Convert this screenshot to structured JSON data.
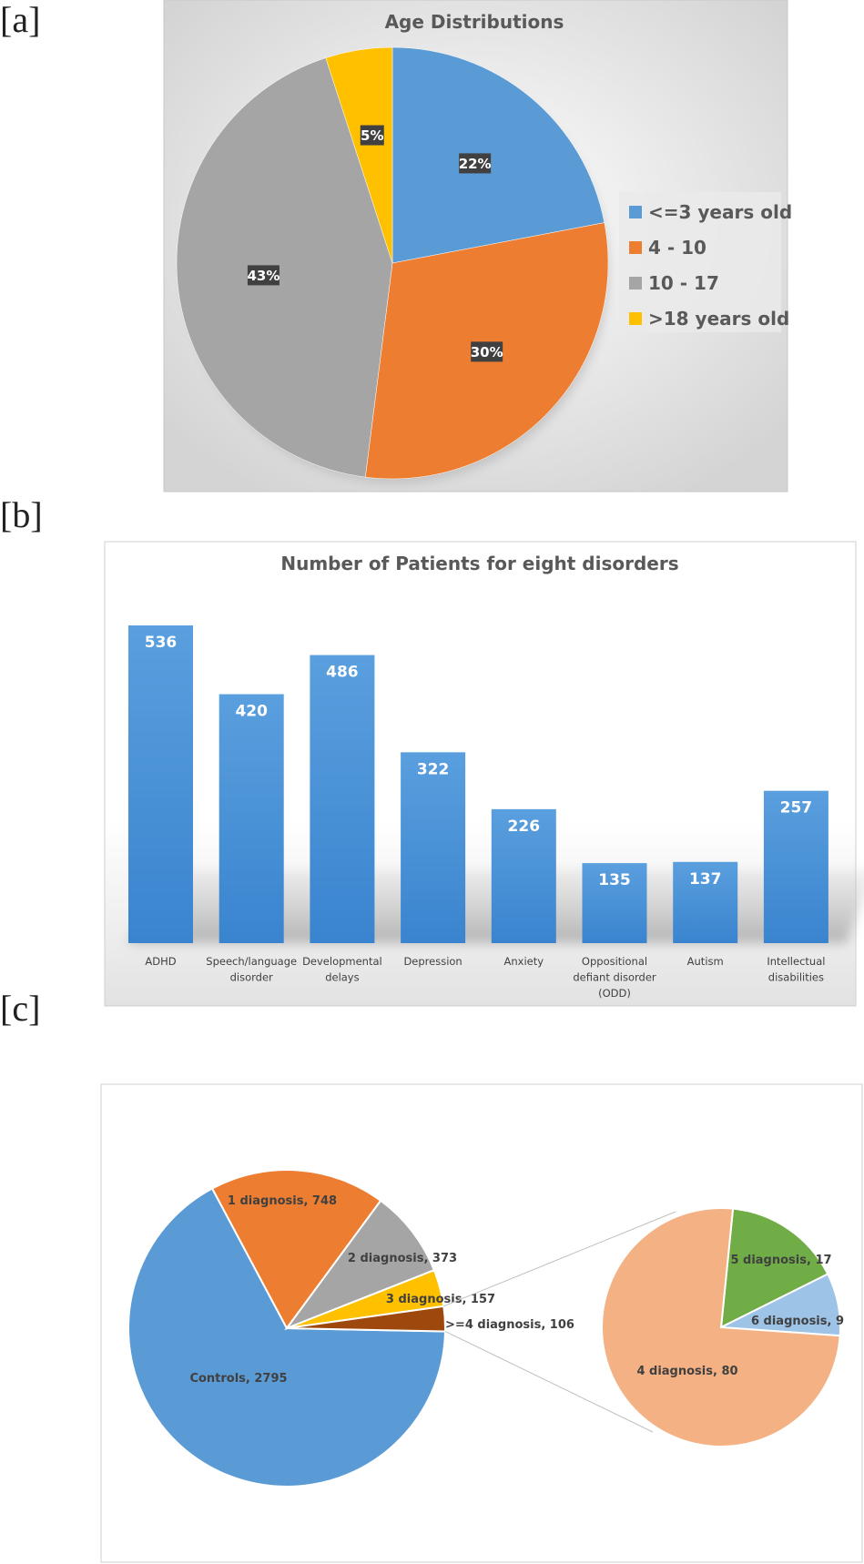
{
  "panels": {
    "a": "[a]",
    "b": "[b]",
    "c": "[c]"
  },
  "chart_data": [
    {
      "type": "pie",
      "title": "Age Distributions",
      "categories": [
        "<=3 years old",
        "4 - 10",
        "10 - 17",
        ">18 years old"
      ],
      "values": [
        22,
        30,
        43,
        5
      ],
      "labels": [
        "22%",
        "30%",
        "43%",
        "5%"
      ],
      "colors": [
        "#5b9bd5",
        "#ed7d31",
        "#a5a5a5",
        "#ffc000"
      ],
      "legend": "right"
    },
    {
      "type": "bar",
      "title": "Number of Patients for eight disorders",
      "categories": [
        [
          "ADHD"
        ],
        [
          "Speech/language",
          "disorder"
        ],
        [
          "Developmental",
          "delays"
        ],
        [
          "Depression"
        ],
        [
          "Anxiety"
        ],
        [
          "Oppositional",
          "defiant disorder",
          "(ODD)"
        ],
        [
          "Autism"
        ],
        [
          "Intellectual",
          "disabilities"
        ]
      ],
      "values": [
        536,
        420,
        486,
        322,
        226,
        135,
        137,
        257
      ],
      "color": "#4a8fd6",
      "grid": false
    },
    {
      "type": "pie",
      "categories": [
        "Controls",
        "1 diagnosis",
        "2 diagnosis",
        "3 diagnosis",
        ">=4 diagnosis"
      ],
      "values": [
        2795,
        748,
        373,
        157,
        106
      ],
      "labels": [
        "Controls, 2795",
        "1 diagnosis, 748",
        "2 diagnosis, 373",
        "3 diagnosis, 157",
        ">=4 diagnosis, 106"
      ],
      "colors": [
        "#5b9bd5",
        "#ed7d31",
        "#a5a5a5",
        "#ffc000",
        "#9e480e"
      ],
      "subpie": {
        "categories": [
          "4 diagnosis",
          "5 diagnosis",
          "6 diagnosis"
        ],
        "values": [
          80,
          17,
          9
        ],
        "labels": [
          "4 diagnosis, 80",
          "5 diagnosis, 17",
          "6 diagnosis, 9"
        ],
        "colors": [
          "#f4b183",
          "#70ad47",
          "#9dc3e6"
        ]
      }
    }
  ]
}
